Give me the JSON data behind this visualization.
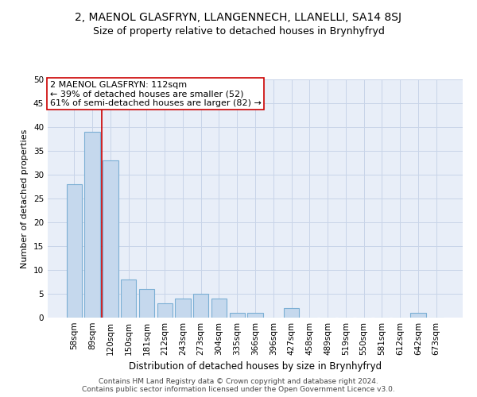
{
  "title1": "2, MAENOL GLASFRYN, LLANGENNECH, LLANELLI, SA14 8SJ",
  "title2": "Size of property relative to detached houses in Brynhyfryd",
  "xlabel": "Distribution of detached houses by size in Brynhyfryd",
  "ylabel": "Number of detached properties",
  "categories": [
    "58sqm",
    "89sqm",
    "120sqm",
    "150sqm",
    "181sqm",
    "212sqm",
    "243sqm",
    "273sqm",
    "304sqm",
    "335sqm",
    "366sqm",
    "396sqm",
    "427sqm",
    "458sqm",
    "489sqm",
    "519sqm",
    "550sqm",
    "581sqm",
    "612sqm",
    "642sqm",
    "673sqm"
  ],
  "values": [
    28,
    39,
    33,
    8,
    6,
    3,
    4,
    5,
    4,
    1,
    1,
    0,
    2,
    0,
    0,
    0,
    0,
    0,
    0,
    1,
    0
  ],
  "bar_color": "#c5d8ed",
  "bar_edge_color": "#7bafd4",
  "bar_linewidth": 0.8,
  "vline_pos": 1.5,
  "vline_color": "#cc0000",
  "annotation_text": "2 MAENOL GLASFRYN: 112sqm\n← 39% of detached houses are smaller (52)\n61% of semi-detached houses are larger (82) →",
  "annotation_box_edgecolor": "#cc0000",
  "annotation_box_facecolor": "#ffffff",
  "ylim": [
    0,
    50
  ],
  "yticks": [
    0,
    5,
    10,
    15,
    20,
    25,
    30,
    35,
    40,
    45,
    50
  ],
  "grid_color": "#c8d4e8",
  "bg_color": "#e8eef8",
  "footer": "Contains HM Land Registry data © Crown copyright and database right 2024.\nContains public sector information licensed under the Open Government Licence v3.0.",
  "title1_fontsize": 10,
  "title2_fontsize": 9,
  "xlabel_fontsize": 8.5,
  "ylabel_fontsize": 8,
  "tick_fontsize": 7.5,
  "annotation_fontsize": 8,
  "footer_fontsize": 6.5
}
